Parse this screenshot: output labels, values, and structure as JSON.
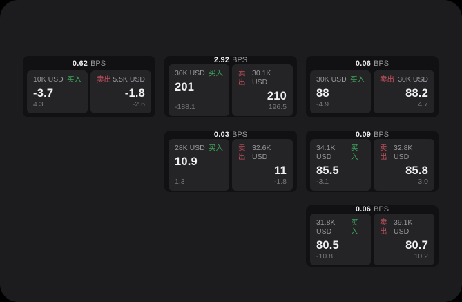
{
  "labels": {
    "buy": "买入",
    "sell": "卖出",
    "bps_suffix": "BPS"
  },
  "colors": {
    "panel_bg": "#1c1c1e",
    "card_bg": "#111113",
    "cell_bg": "#242427",
    "buy_green": "#3fa35a",
    "sell_red": "#bf4f5b"
  },
  "cards": [
    {
      "col": 1,
      "row": 1,
      "bps": "0.62",
      "buy": {
        "amount": "10K USD",
        "value": "-3.7",
        "sub": "4.3"
      },
      "sell": {
        "amount": "5.5K USD",
        "value": "-1.8",
        "sub": "-2.6"
      }
    },
    {
      "col": 2,
      "row": 1,
      "bps": "2.92",
      "buy": {
        "amount": "30K USD",
        "value": "201",
        "sub": "-188.1"
      },
      "sell": {
        "amount": "30.1K USD",
        "value": "210",
        "sub": "196.5"
      }
    },
    {
      "col": 3,
      "row": 1,
      "bps": "0.06",
      "buy": {
        "amount": "30K USD",
        "value": "88",
        "sub": "-4.9"
      },
      "sell": {
        "amount": "30K USD",
        "value": "88.2",
        "sub": "4.7"
      }
    },
    {
      "col": 2,
      "row": 2,
      "bps": "0.03",
      "buy": {
        "amount": "28K USD",
        "value": "10.9",
        "sub": "1.3"
      },
      "sell": {
        "amount": "32.6K USD",
        "value": "11",
        "sub": "-1.8"
      }
    },
    {
      "col": 3,
      "row": 2,
      "bps": "0.09",
      "buy": {
        "amount": "34.1K USD",
        "value": "85.5",
        "sub": "-3.1"
      },
      "sell": {
        "amount": "32.8K USD",
        "value": "85.8",
        "sub": "3.0"
      }
    },
    {
      "col": 3,
      "row": 3,
      "bps": "0.06",
      "buy": {
        "amount": "31.8K USD",
        "value": "80.5",
        "sub": "-10.8"
      },
      "sell": {
        "amount": "39.1K USD",
        "value": "80.7",
        "sub": "10.2"
      }
    }
  ]
}
